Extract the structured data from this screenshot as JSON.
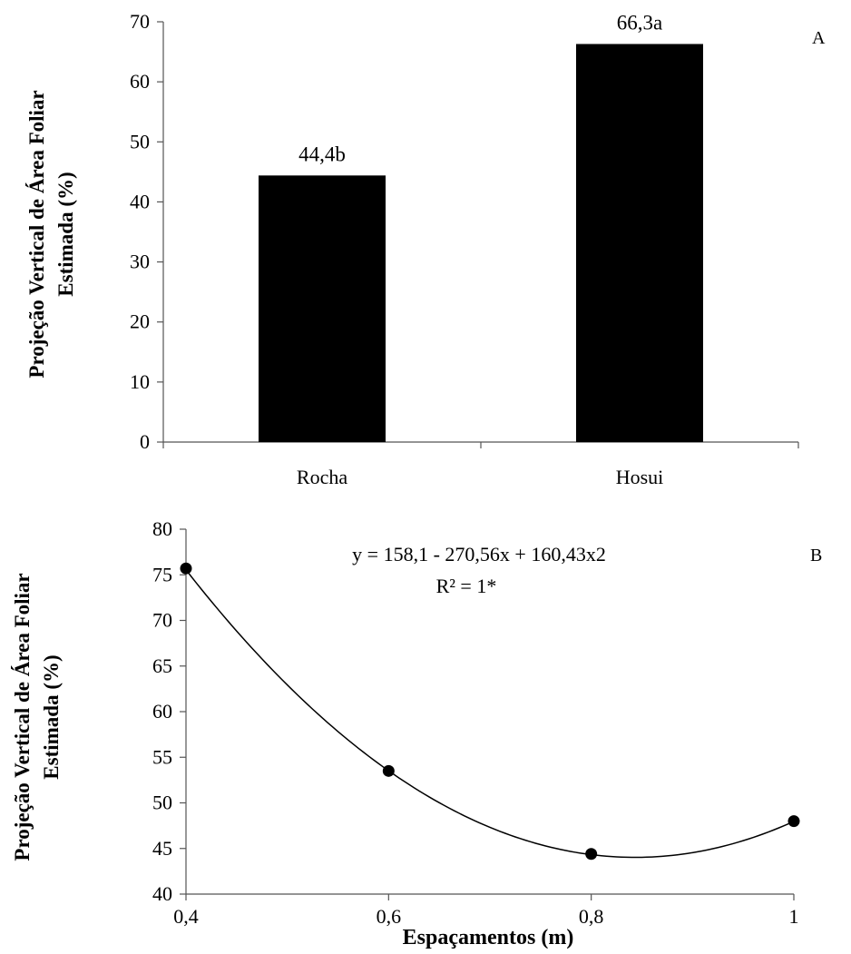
{
  "chart_data": [
    {
      "type": "bar",
      "panel_label": "A",
      "categories": [
        "Rocha",
        "Hosui"
      ],
      "values": [
        44.4,
        66.3
      ],
      "data_labels": [
        "44,4b",
        "66,3a"
      ],
      "ylabel_line1": "Projeção Vertical de Área Foliar",
      "ylabel_line2": "Estimada (%)",
      "xlabel": "",
      "ylim": [
        0,
        70
      ],
      "yticks": [
        0,
        10,
        20,
        30,
        40,
        50,
        60,
        70
      ],
      "ytick_labels": [
        "0",
        "10",
        "20",
        "30",
        "40",
        "50",
        "60",
        "70"
      ],
      "bar_color": "#000000",
      "grid": false
    },
    {
      "type": "scatter",
      "panel_label": "B",
      "x": [
        0.4,
        0.6,
        0.8,
        1.0
      ],
      "y": [
        75.7,
        53.5,
        44.4,
        48.0
      ],
      "fit": {
        "a": 158.1,
        "b": -270.56,
        "c": 160.43
      },
      "equation_text": "y = 158,1 - 270,56x + 160,43x2",
      "r2_text": "R² = 1*",
      "xlabel": "Espaçamentos (m)",
      "ylabel_line1": "Projeção Vertical de Área Foliar",
      "ylabel_line2": "Estimada (%)",
      "xlim": [
        0.4,
        1.0
      ],
      "ylim": [
        40,
        80
      ],
      "xticks": [
        0.4,
        0.6,
        0.8,
        1.0
      ],
      "xtick_labels": [
        "0,4",
        "0,6",
        "0,8",
        "1"
      ],
      "yticks": [
        40,
        45,
        50,
        55,
        60,
        65,
        70,
        75,
        80
      ],
      "ytick_labels": [
        "40",
        "45",
        "50",
        "55",
        "60",
        "65",
        "70",
        "75",
        "80"
      ],
      "marker_color": "#000000",
      "grid": false
    }
  ]
}
